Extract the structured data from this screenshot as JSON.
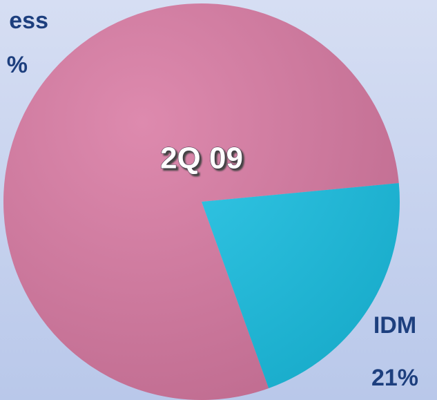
{
  "chart_data": {
    "type": "pie",
    "title": "2Q 09",
    "categories": [
      "ess",
      "IDM"
    ],
    "values": [
      79,
      21
    ],
    "value_labels": [
      "%",
      "21%"
    ],
    "colors": [
      "#d97aa3",
      "#1cc3e6"
    ]
  }
}
